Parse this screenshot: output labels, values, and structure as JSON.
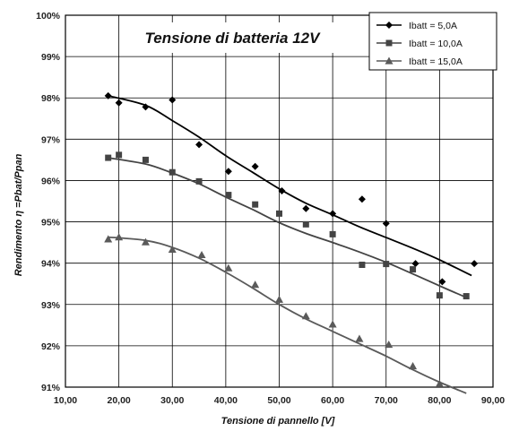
{
  "chart_data": {
    "type": "scatter",
    "title": "Tensione di batteria 12V",
    "xlabel": "Tensione di pannello [V]",
    "ylabel": "Rendimento η =Pbat/Ppan",
    "xlim": [
      10,
      90
    ],
    "ylim": [
      91,
      100
    ],
    "x_ticks": [
      "10,00",
      "20,00",
      "30,00",
      "40,00",
      "50,00",
      "60,00",
      "70,00",
      "80,00",
      "90,00"
    ],
    "y_ticks": [
      "91%",
      "92%",
      "93%",
      "94%",
      "95%",
      "96%",
      "97%",
      "98%",
      "99%",
      "100%"
    ],
    "grid": true,
    "legend_position": "top-right",
    "series": [
      {
        "name": "Ibatt = 5,0A",
        "marker": "diamond",
        "points": [
          [
            18,
            98.05
          ],
          [
            20,
            97.88
          ],
          [
            25,
            97.78
          ],
          [
            30,
            97.95
          ],
          [
            35,
            96.87
          ],
          [
            40.5,
            96.22
          ],
          [
            45.5,
            96.34
          ],
          [
            50.5,
            95.75
          ],
          [
            55,
            95.32
          ],
          [
            60,
            95.2
          ],
          [
            65.5,
            95.55
          ],
          [
            70,
            94.96
          ],
          [
            75.5,
            93.99
          ],
          [
            80.5,
            93.55
          ],
          [
            86.5,
            93.99
          ]
        ],
        "trend": [
          [
            18,
            98.05
          ],
          [
            25,
            97.82
          ],
          [
            30,
            97.45
          ],
          [
            35,
            97.05
          ],
          [
            40,
            96.6
          ],
          [
            45,
            96.2
          ],
          [
            50,
            95.8
          ],
          [
            55,
            95.45
          ],
          [
            60,
            95.17
          ],
          [
            65,
            94.88
          ],
          [
            70,
            94.62
          ],
          [
            75,
            94.36
          ],
          [
            80,
            94.08
          ],
          [
            86,
            93.7
          ]
        ]
      },
      {
        "name": "Ibatt = 10,0A",
        "marker": "square",
        "points": [
          [
            18,
            96.55
          ],
          [
            20,
            96.62
          ],
          [
            25,
            96.5
          ],
          [
            30,
            96.2
          ],
          [
            35,
            95.98
          ],
          [
            40.5,
            95.65
          ],
          [
            45.5,
            95.42
          ],
          [
            50,
            95.2
          ],
          [
            55,
            94.94
          ],
          [
            60,
            94.7
          ],
          [
            65.5,
            93.96
          ],
          [
            70,
            93.98
          ],
          [
            75,
            93.85
          ],
          [
            80,
            93.22
          ],
          [
            85,
            93.2
          ]
        ],
        "trend": [
          [
            18,
            96.55
          ],
          [
            25,
            96.4
          ],
          [
            30,
            96.18
          ],
          [
            35,
            95.92
          ],
          [
            40,
            95.6
          ],
          [
            45,
            95.3
          ],
          [
            50,
            94.98
          ],
          [
            55,
            94.72
          ],
          [
            60,
            94.5
          ],
          [
            65,
            94.27
          ],
          [
            70,
            94.02
          ],
          [
            75,
            93.74
          ],
          [
            80,
            93.45
          ],
          [
            85,
            93.17
          ]
        ]
      },
      {
        "name": "Ibatt = 15,0A",
        "marker": "triangle",
        "points": [
          [
            18,
            94.58
          ],
          [
            20,
            94.63
          ],
          [
            25,
            94.51
          ],
          [
            30,
            94.33
          ],
          [
            35.5,
            94.2
          ],
          [
            40.5,
            93.88
          ],
          [
            45.5,
            93.48
          ],
          [
            50,
            93.12
          ],
          [
            55,
            92.72
          ],
          [
            60,
            92.52
          ],
          [
            65,
            92.17
          ],
          [
            70.5,
            92.03
          ],
          [
            75,
            91.51
          ],
          [
            80,
            91.08
          ]
        ],
        "trend": [
          [
            18,
            94.63
          ],
          [
            25,
            94.55
          ],
          [
            30,
            94.38
          ],
          [
            35,
            94.12
          ],
          [
            40,
            93.78
          ],
          [
            45,
            93.4
          ],
          [
            50,
            93.0
          ],
          [
            55,
            92.65
          ],
          [
            60,
            92.35
          ],
          [
            65,
            92.05
          ],
          [
            70,
            91.75
          ],
          [
            75,
            91.42
          ],
          [
            80,
            91.12
          ],
          [
            85,
            90.85
          ]
        ]
      }
    ]
  }
}
